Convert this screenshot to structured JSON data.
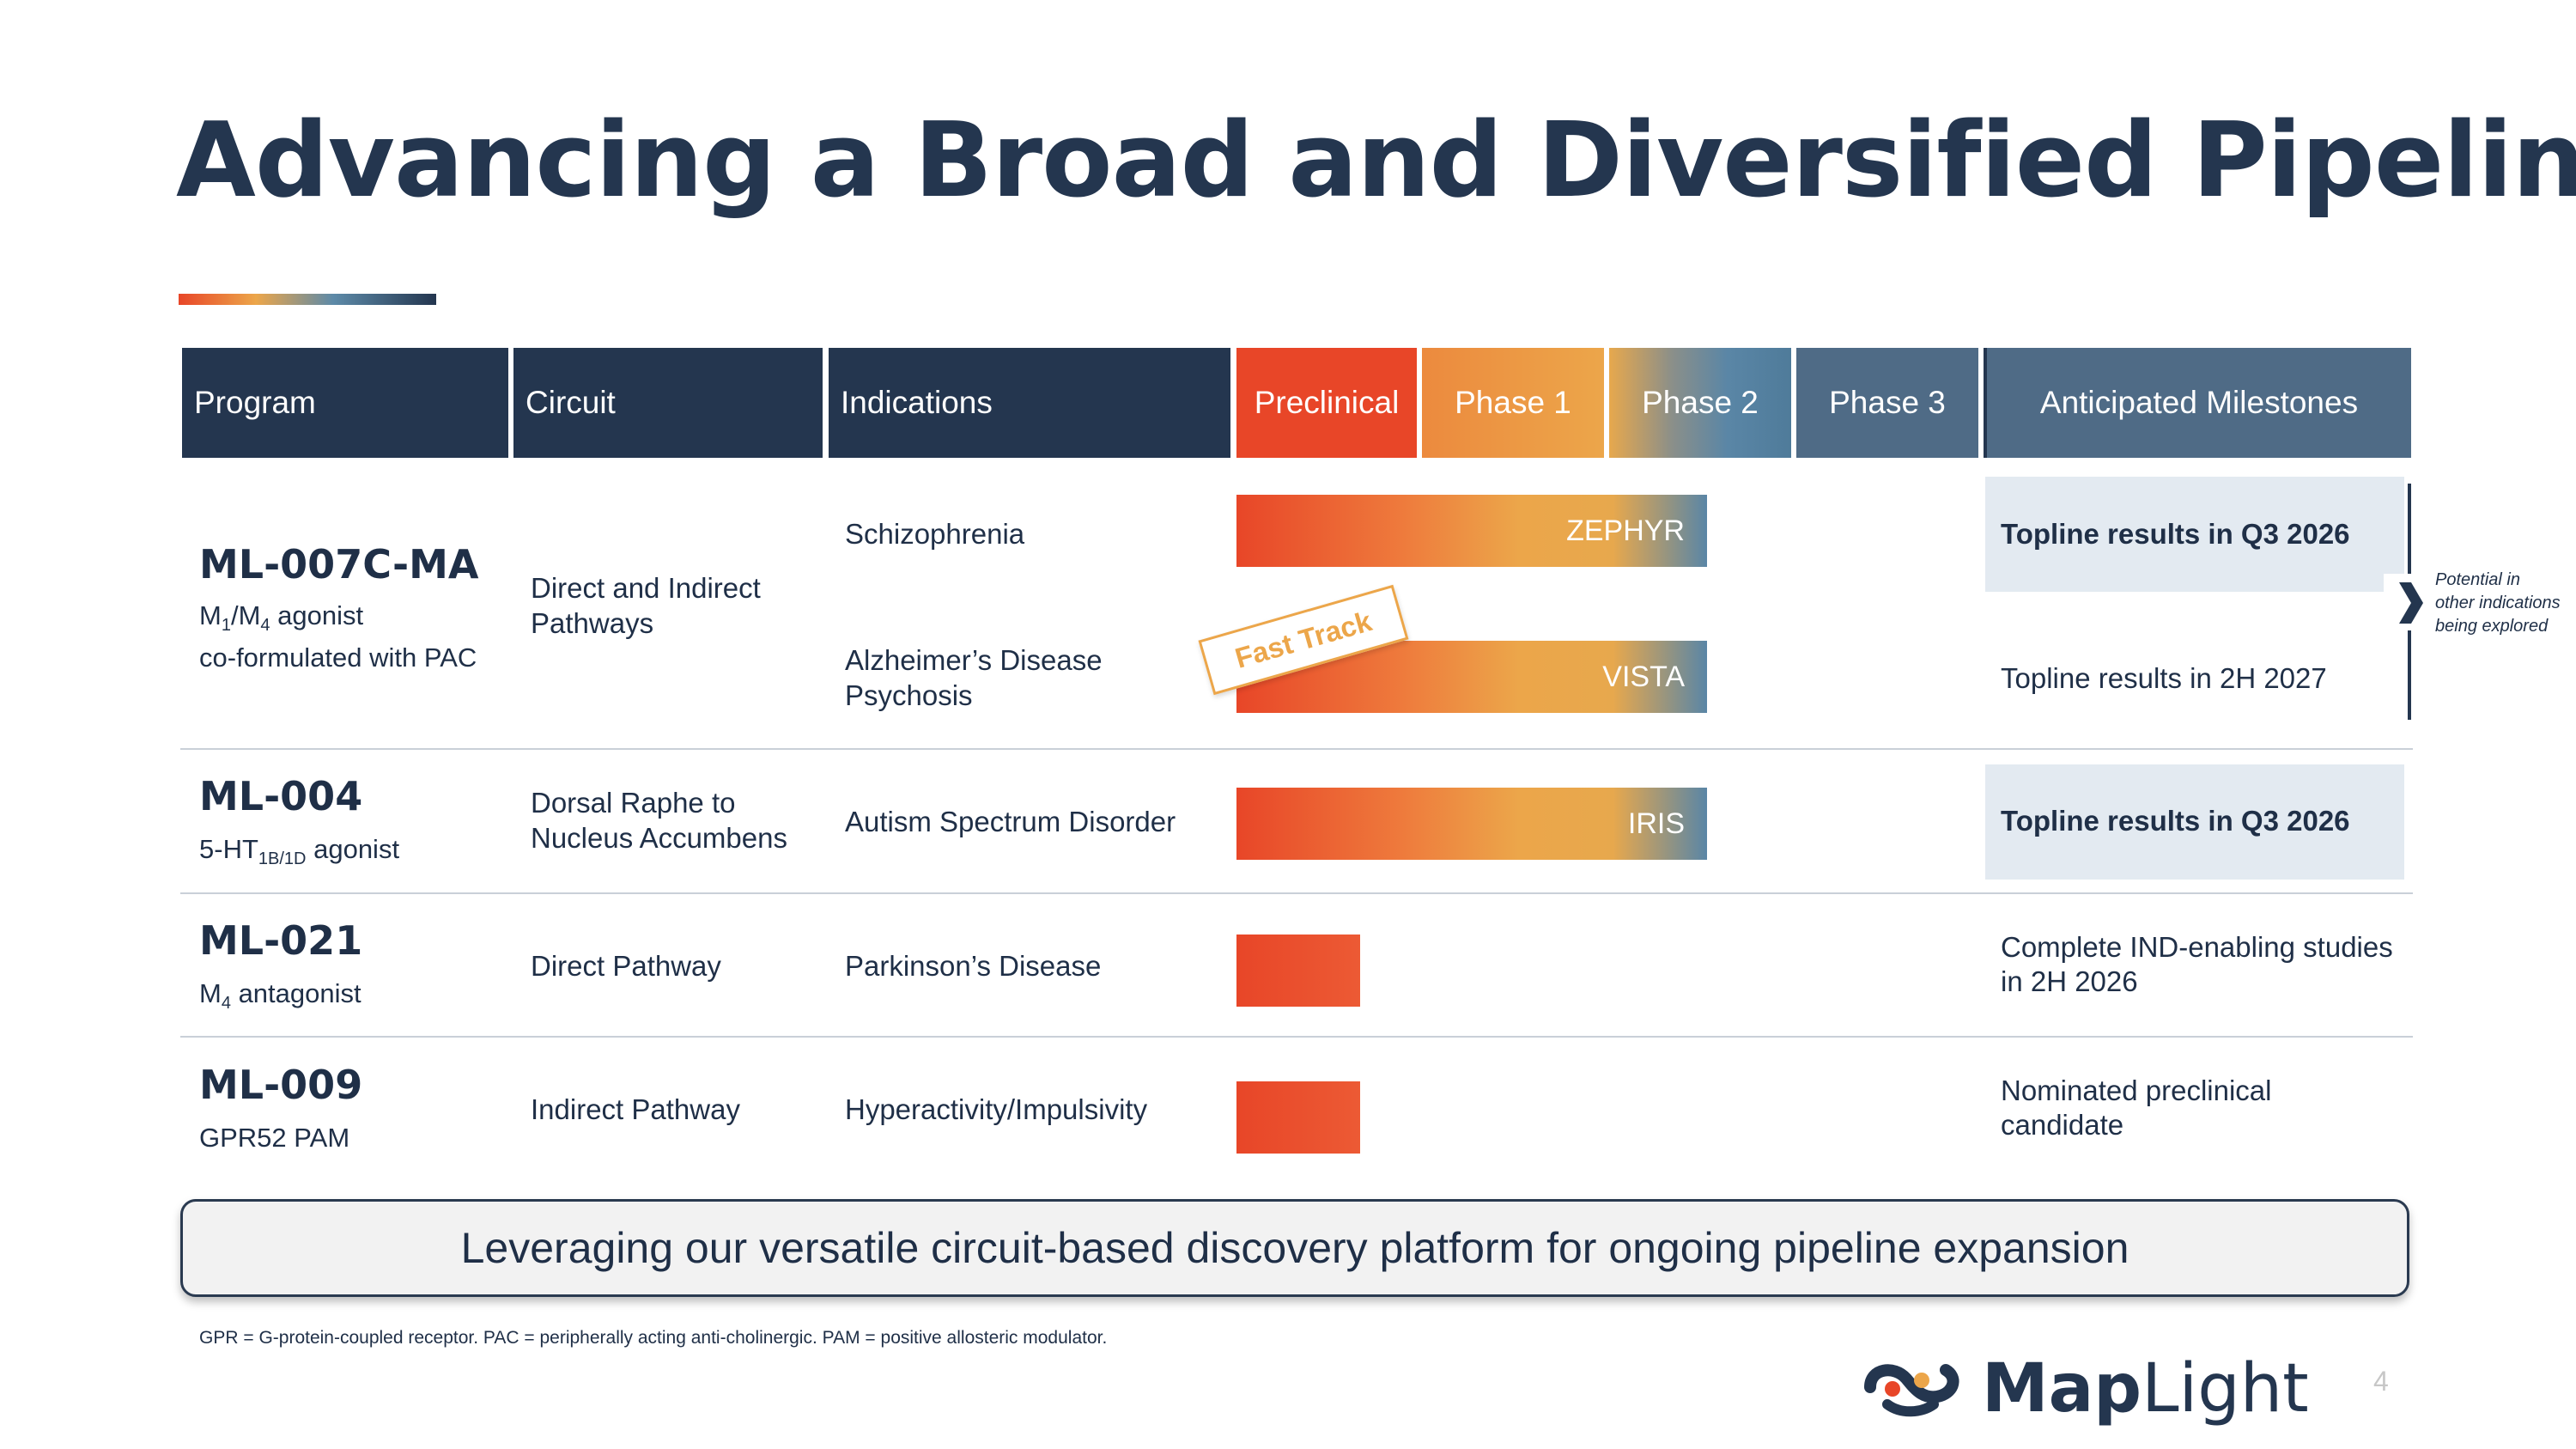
{
  "title": "Advancing a Broad and Diversified Pipeline",
  "table": {
    "headers": {
      "program": "Program",
      "circuit": "Circuit",
      "indications": "Indications",
      "preclinical": "Preclinical",
      "phase1": "Phase 1",
      "phase2": "Phase 2",
      "phase3": "Phase 3",
      "milestones": "Anticipated Milestones"
    },
    "rows": [
      {
        "program": "ML-007C-MA",
        "mech_m": "M",
        "mech_sub1": "1",
        "mech_slash": "/M",
        "mech_sub2": "4",
        "mech_rest": " agonist",
        "mech_line2": "co-formulated with PAC",
        "circuit_line1": "Direct and Indirect",
        "circuit_line2": "Pathways",
        "indication1": "Schizophrenia",
        "indication2_line1": "Alzheimer’s Disease",
        "indication2_line2": "Psychosis",
        "bar1_label": "ZEPHYR",
        "bar1_stage_reached": 2,
        "bar2_label": "VISTA",
        "bar2_stage_reached": 2,
        "milestone1": "Topline results in Q3 2026",
        "milestone2": "Topline results in 2H 2027"
      },
      {
        "program": "ML-004",
        "mech_pre": "5-HT",
        "mech_sub": "1B/1D",
        "mech_rest": " agonist",
        "circuit_line1": "Dorsal Raphe to",
        "circuit_line2": "Nucleus Accumbens",
        "indication": "Autism Spectrum Disorder",
        "bar_label": "IRIS",
        "bar_stage_reached": 2,
        "milestone": "Topline results in Q3 2026"
      },
      {
        "program": "ML-021",
        "mech_pre": "M",
        "mech_sub": "4",
        "mech_rest": " antagonist",
        "circuit": "Direct Pathway",
        "indication": "Parkinson’s Disease",
        "bar_stage_reached": 0.66,
        "milestone_line1": "Complete IND-enabling studies",
        "milestone_line2": "in 2H 2026"
      },
      {
        "program": "ML-009",
        "mech": "GPR52 PAM",
        "circuit": "Indirect Pathway",
        "indication": "Hyperactivity/Impulsivity",
        "bar_stage_reached": 0.66,
        "milestone_line1": "Nominated preclinical",
        "milestone_line2": "candidate"
      }
    ]
  },
  "fast_track_label": "Fast Track",
  "side_note": {
    "line1": "Potential in",
    "line2": "other indications",
    "line3": "being explored"
  },
  "banner": "Leveraging our versatile circuit-based discovery platform for ongoing pipeline expansion",
  "footnote": "GPR = G-protein-coupled receptor. PAC = peripherally acting anti-cholinergic. PAM = positive allosteric modulator.",
  "logo": {
    "part1": "Map",
    "part2": "Light"
  },
  "page_number": "4",
  "colors": {
    "navy": "#24364f",
    "slate": "#4f6b86",
    "orange_red": "#e84628",
    "amber": "#eca64a",
    "steel_blue": "#5a86a6",
    "highlight_bg": "#e3eaf1"
  }
}
